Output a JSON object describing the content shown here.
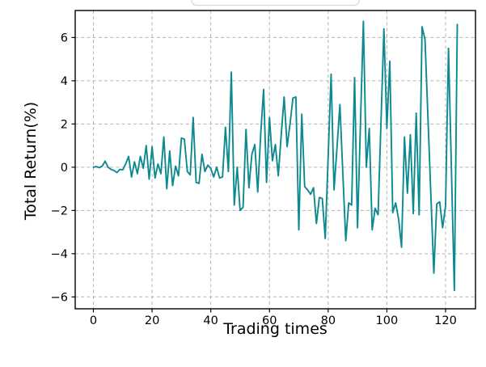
{
  "figure": {
    "background": "#ffffff",
    "legend_box": {
      "visible": true,
      "note": "legend box cut off at top edge of figure"
    }
  },
  "chart_data": {
    "type": "line",
    "title": "",
    "xlabel": "Trading times",
    "ylabel": "Total Return(%)",
    "legend_position": "above-axes-clipped",
    "grid": true,
    "grid_style": "dashed",
    "grid_color": "#b3b3b3",
    "line_color": "#0d8a8f",
    "line_width": 1.9,
    "spine_color": "#000000",
    "xlim": [
      -6.2,
      130.2
    ],
    "ylim": [
      -6.55,
      7.25
    ],
    "xticks": [
      0,
      20,
      40,
      60,
      80,
      100,
      120
    ],
    "xticklabels": [
      "0",
      "20",
      "40",
      "60",
      "80",
      "100",
      "120"
    ],
    "yticks": [
      -6,
      -4,
      -2,
      0,
      2,
      4,
      6
    ],
    "yticklabels": [
      "−6",
      "−4",
      "−2",
      "0",
      "2",
      "4",
      "6"
    ],
    "x_is_index": true,
    "x_start": 0,
    "x_step": 1,
    "values": [
      0.0,
      0.03,
      -0.02,
      0.05,
      0.28,
      0.0,
      -0.1,
      -0.15,
      -0.25,
      -0.1,
      -0.12,
      0.15,
      0.5,
      -0.45,
      0.25,
      -0.3,
      0.5,
      -0.05,
      1.0,
      -0.55,
      0.95,
      -0.5,
      0.15,
      -0.3,
      1.4,
      -1.0,
      0.75,
      -0.85,
      0.05,
      -0.4,
      1.35,
      1.3,
      -0.2,
      -0.35,
      2.3,
      -0.7,
      -0.75,
      0.6,
      -0.2,
      0.1,
      -0.06,
      -0.45,
      0.0,
      -0.5,
      -0.45,
      1.85,
      -0.2,
      4.4,
      -1.75,
      0.0,
      -2.0,
      -1.85,
      1.75,
      -0.95,
      0.6,
      1.05,
      -1.15,
      1.5,
      3.6,
      -0.7,
      2.3,
      0.3,
      1.05,
      -0.4,
      1.5,
      3.25,
      0.95,
      2.0,
      3.2,
      3.25,
      -2.9,
      2.45,
      -0.9,
      -1.05,
      -1.25,
      -0.95,
      -2.6,
      -1.4,
      -1.45,
      -3.3,
      0.5,
      4.3,
      -1.05,
      0.9,
      2.9,
      -0.3,
      -3.4,
      -1.65,
      -1.75,
      4.15,
      -2.8,
      2.0,
      6.75,
      0.0,
      1.8,
      -2.9,
      -1.9,
      -2.2,
      2.1,
      6.4,
      1.8,
      4.9,
      -2.1,
      -1.65,
      -2.4,
      -3.7,
      1.4,
      -1.2,
      1.5,
      -2.15,
      2.5,
      -2.2,
      6.5,
      5.9,
      2.3,
      -1.3,
      -4.9,
      -1.7,
      -1.6,
      -2.8,
      -1.8,
      5.5,
      -0.1,
      -5.7,
      6.6
    ]
  }
}
